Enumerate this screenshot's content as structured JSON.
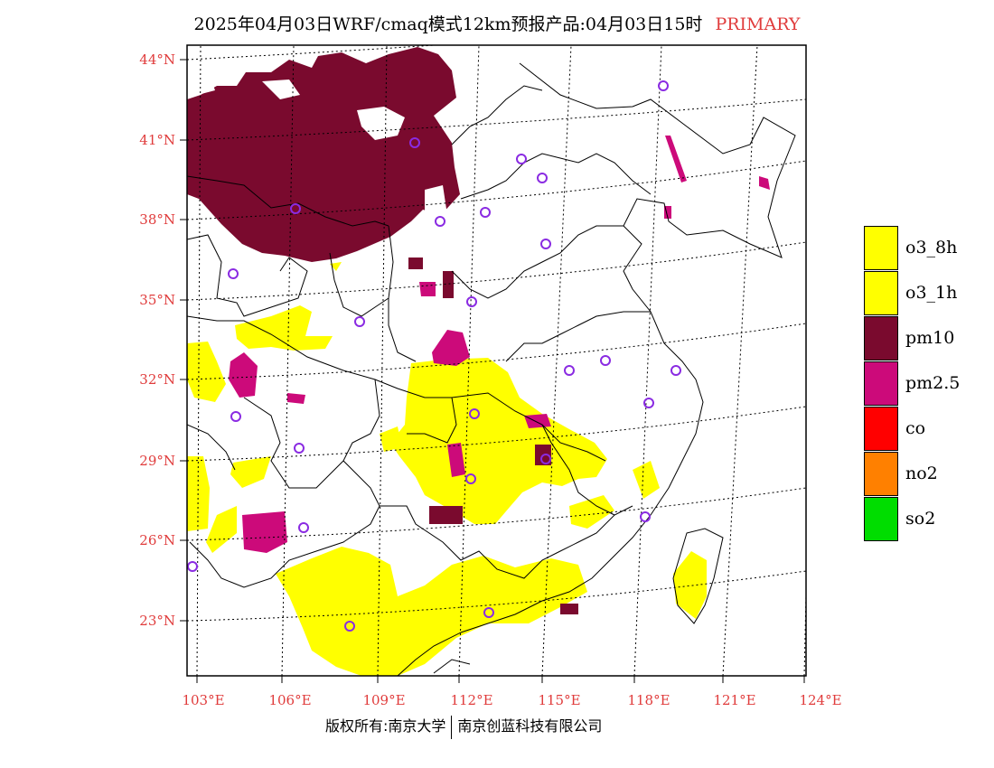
{
  "title": {
    "main": "2025年04月03日WRF/cmaq模式12km预报产品:04月03日15时",
    "tag": "PRIMARY",
    "tag_color": "#e03c3c"
  },
  "map": {
    "lat_labels": [
      "44°N",
      "41°N",
      "38°N",
      "35°N",
      "32°N",
      "29°N",
      "26°N",
      "23°N"
    ],
    "lon_labels": [
      "103°E",
      "106°E",
      "109°E",
      "112°E",
      "115°E",
      "118°E",
      "121°E",
      "124°E"
    ],
    "label_color": "#e03c3c"
  },
  "legend": [
    {
      "label": "o3_8h",
      "color": "#ffff00"
    },
    {
      "label": "o3_1h",
      "color": "#ffff00"
    },
    {
      "label": "pm10",
      "color": "#7a0a2e"
    },
    {
      "label": "pm2.5",
      "color": "#cc0a7a"
    },
    {
      "label": "co",
      "color": "#ff0000"
    },
    {
      "label": "no2",
      "color": "#ff8000"
    },
    {
      "label": "so2",
      "color": "#00dd00"
    }
  ],
  "footer": {
    "left": "版权所有:南京大学",
    "right": "南京创蓝科技有限公司"
  }
}
